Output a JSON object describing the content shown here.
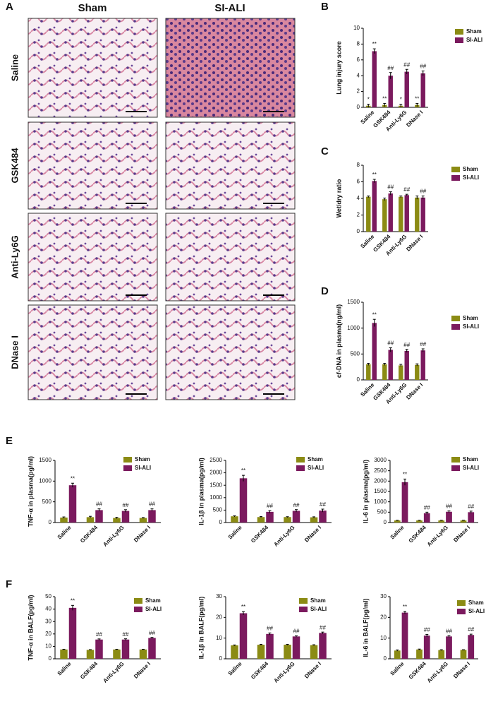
{
  "figure": {
    "panel_labels": [
      "A",
      "B",
      "C",
      "D",
      "E",
      "F"
    ],
    "column_labels": [
      "Sham",
      "SI-ALI"
    ],
    "row_labels": [
      "Saline",
      "GSK484",
      "Anti-Ly6G",
      "DNase I"
    ]
  },
  "chart_data": [
    {
      "type": "bar",
      "ylabel": "Lung injury score",
      "categories": [
        "Saline",
        "GSK484",
        "Anti-Ly6G",
        "DNase I"
      ],
      "ylim": [
        0,
        10
      ],
      "yticks": [
        0,
        2,
        4,
        6,
        8,
        10
      ],
      "series": [
        {
          "name": "Sham",
          "color": "#8b8b14",
          "values": [
            0.2,
            0.3,
            0.2,
            0.3
          ],
          "errors": [
            0.2,
            0.2,
            0.2,
            0.2
          ],
          "significance": [
            "*",
            "**",
            "*",
            "**"
          ]
        },
        {
          "name": "SI-ALI",
          "color": "#7b1a5e",
          "values": [
            7.1,
            4.0,
            4.5,
            4.3
          ],
          "errors": [
            0.3,
            0.4,
            0.3,
            0.3
          ],
          "significance": [
            "**",
            "##",
            "##",
            "##"
          ]
        }
      ]
    },
    {
      "type": "bar",
      "ylabel": "Wet/dry ratio",
      "categories": [
        "Saline",
        "GSK484",
        "Anti-Ly6G",
        "DNase I"
      ],
      "ylim": [
        0,
        8
      ],
      "yticks": [
        0,
        2,
        4,
        6,
        8
      ],
      "series": [
        {
          "name": "Sham",
          "color": "#8b8b14",
          "values": [
            4.2,
            3.9,
            4.2,
            4.1
          ],
          "errors": [
            0.1,
            0.15,
            0.1,
            0.2
          ],
          "significance": [
            null,
            null,
            null,
            null
          ]
        },
        {
          "name": "SI-ALI",
          "color": "#7b1a5e",
          "values": [
            6.1,
            4.6,
            4.4,
            4.1
          ],
          "errors": [
            0.2,
            0.2,
            0.1,
            0.2
          ],
          "significance": [
            "**",
            "##",
            "##",
            "##"
          ]
        }
      ]
    },
    {
      "type": "bar",
      "ylabel": "cf-DNA in plasma(ng/ml)",
      "categories": [
        "Saline",
        "GSK484",
        "Anti-Ly6G",
        "DNase I"
      ],
      "ylim": [
        0,
        1500
      ],
      "yticks": [
        0,
        500,
        1000,
        1500
      ],
      "series": [
        {
          "name": "Sham",
          "color": "#8b8b14",
          "values": [
            300,
            300,
            280,
            290
          ],
          "errors": [
            20,
            20,
            20,
            20
          ],
          "significance": [
            null,
            null,
            null,
            null
          ]
        },
        {
          "name": "SI-ALI",
          "color": "#7b1a5e",
          "values": [
            1100,
            580,
            560,
            570
          ],
          "errors": [
            70,
            40,
            30,
            30
          ],
          "significance": [
            "**",
            "##",
            "##",
            "##"
          ]
        }
      ]
    },
    {
      "type": "bar",
      "ylabel": "TNF-α in plasma(pg/ml)",
      "categories": [
        "Saline",
        "GSK484",
        "Anti-Ly6G",
        "DNase I"
      ],
      "ylim": [
        0,
        1500
      ],
      "yticks": [
        0,
        500,
        1000,
        1500
      ],
      "series": [
        {
          "name": "Sham",
          "color": "#8b8b14",
          "values": [
            120,
            130,
            110,
            110
          ],
          "errors": [
            15,
            20,
            15,
            10
          ],
          "significance": [
            null,
            null,
            null,
            null
          ]
        },
        {
          "name": "SI-ALI",
          "color": "#7b1a5e",
          "values": [
            900,
            300,
            280,
            300
          ],
          "errors": [
            50,
            30,
            30,
            30
          ],
          "significance": [
            "**",
            "##",
            "##",
            "##"
          ]
        }
      ]
    },
    {
      "type": "bar",
      "ylabel": "IL-1β in plasma(pg/ml)",
      "categories": [
        "Saline",
        "GSK484",
        "Anti-Ly6G",
        "DNase I"
      ],
      "ylim": [
        0,
        2500
      ],
      "yticks": [
        0,
        500,
        1000,
        1500,
        2000,
        2500
      ],
      "series": [
        {
          "name": "Sham",
          "color": "#8b8b14",
          "values": [
            250,
            220,
            220,
            210
          ],
          "errors": [
            20,
            20,
            15,
            20
          ],
          "significance": [
            null,
            null,
            null,
            null
          ]
        },
        {
          "name": "SI-ALI",
          "color": "#7b1a5e",
          "values": [
            1780,
            430,
            470,
            480
          ],
          "errors": [
            120,
            50,
            50,
            60
          ],
          "significance": [
            "**",
            "##",
            "##",
            "##"
          ]
        }
      ]
    },
    {
      "type": "bar",
      "ylabel": "IL-6 in plasma(pg/ml)",
      "categories": [
        "Saline",
        "GSK484",
        "Anti-Ly6G",
        "DNase I"
      ],
      "ylim": [
        0,
        3000
      ],
      "yticks": [
        0,
        500,
        1000,
        1500,
        2000,
        2500,
        3000
      ],
      "series": [
        {
          "name": "Sham",
          "color": "#8b8b14",
          "values": [
            100,
            100,
            100,
            100
          ],
          "errors": [
            10,
            10,
            10,
            10
          ],
          "significance": [
            null,
            null,
            null,
            null
          ]
        },
        {
          "name": "SI-ALI",
          "color": "#7b1a5e",
          "values": [
            1950,
            450,
            520,
            500
          ],
          "errors": [
            150,
            50,
            40,
            50
          ],
          "significance": [
            "**",
            "##",
            "##",
            "##"
          ]
        }
      ]
    },
    {
      "type": "bar",
      "ylabel": "TNF-α in BALF(pg/ml)",
      "categories": [
        "Saline",
        "GSK484",
        "Anti-Ly6G",
        "DNase I"
      ],
      "ylim": [
        0,
        50
      ],
      "yticks": [
        0,
        10,
        20,
        30,
        40,
        50
      ],
      "series": [
        {
          "name": "Sham",
          "color": "#8b8b14",
          "values": [
            7.5,
            7.2,
            7.5,
            7.5
          ],
          "errors": [
            0.2,
            0.2,
            0.2,
            0.2
          ],
          "significance": [
            null,
            null,
            null,
            null
          ]
        },
        {
          "name": "SI-ALI",
          "color": "#7b1a5e",
          "values": [
            41,
            15.5,
            15.5,
            16.8
          ],
          "errors": [
            2,
            0.5,
            0.6,
            0.4
          ],
          "significance": [
            "**",
            "##",
            "##",
            "##"
          ]
        }
      ]
    },
    {
      "type": "bar",
      "ylabel": "IL-1β in BALF(pg/ml)",
      "categories": [
        "Saline",
        "GSK484",
        "Anti-Ly6G",
        "DNase I"
      ],
      "ylim": [
        0,
        30
      ],
      "yticks": [
        0,
        10,
        20,
        30
      ],
      "series": [
        {
          "name": "Sham",
          "color": "#8b8b14",
          "values": [
            6.5,
            6.8,
            6.8,
            6.6
          ],
          "errors": [
            0.2,
            0.2,
            0.2,
            0.2
          ],
          "significance": [
            null,
            null,
            null,
            null
          ]
        },
        {
          "name": "SI-ALI",
          "color": "#7b1a5e",
          "values": [
            22,
            12,
            10.8,
            12.5
          ],
          "errors": [
            0.8,
            0.5,
            0.3,
            0.4
          ],
          "significance": [
            "**",
            "##",
            "##",
            "##"
          ]
        }
      ]
    },
    {
      "type": "bar",
      "ylabel": "IL-6 in BALF(pg/ml)",
      "categories": [
        "Saline",
        "GSK484",
        "Anti-Ly6G",
        "DNase I"
      ],
      "ylim": [
        0,
        30
      ],
      "yticks": [
        0,
        10,
        20,
        30
      ],
      "series": [
        {
          "name": "Sham",
          "color": "#8b8b14",
          "values": [
            4,
            4.5,
            4.2,
            4.3
          ],
          "errors": [
            0.3,
            0.2,
            0.2,
            0.1
          ],
          "significance": [
            null,
            null,
            null,
            null
          ]
        },
        {
          "name": "SI-ALI",
          "color": "#7b1a5e",
          "values": [
            22.3,
            11.2,
            10.8,
            11.5
          ],
          "errors": [
            0.6,
            0.6,
            0.4,
            0.4
          ],
          "significance": [
            "**",
            "##",
            "##",
            "##"
          ]
        }
      ]
    }
  ]
}
